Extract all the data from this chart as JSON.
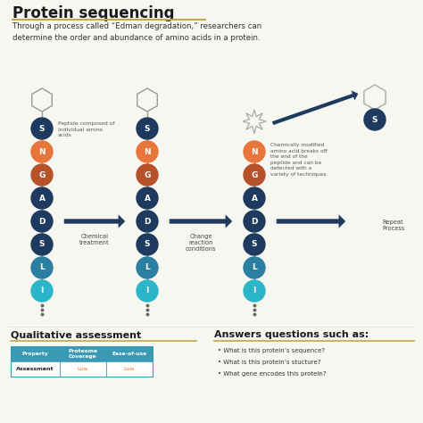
{
  "title": "Protein sequencing",
  "subtitle": "Through a process called “Edman degradation,” researchers can\ndetermine the order and abundance of amino acids in a protein.",
  "chain1_labels": [
    "S",
    "N",
    "G",
    "A",
    "D",
    "S",
    "L",
    "I"
  ],
  "chain1_colors": [
    "#1e3a5f",
    "#e8753a",
    "#b5522a",
    "#1e3a5f",
    "#1e3a5f",
    "#1e3a5f",
    "#2b7fa0",
    "#2bb5c8"
  ],
  "chain2_labels": [
    "S",
    "N",
    "G",
    "A",
    "D",
    "S",
    "L",
    "I"
  ],
  "chain2_colors": [
    "#1e3a5f",
    "#e8753a",
    "#b5522a",
    "#1e3a5f",
    "#1e3a5f",
    "#1e3a5f",
    "#2b7fa0",
    "#2bb5c8"
  ],
  "chain3_labels": [
    "N",
    "G",
    "A",
    "D",
    "S",
    "L",
    "I"
  ],
  "chain3_colors": [
    "#e8753a",
    "#b5522a",
    "#1e3a5f",
    "#1e3a5f",
    "#1e3a5f",
    "#2b7fa0",
    "#2bb5c8"
  ],
  "arrow_color": "#1e3a5f",
  "label1": "Chemical\ntreatment",
  "label2": "Change\nreaction\nconditions",
  "label3": "Repeat\nProcess",
  "annot1": "Peptide composed of\nindividual amino\nacids",
  "annot3": "Chemically modified\namino acid breaks off\nthe end of the\npeptide and can be\ndetected with a\nvariety of techniques",
  "qual_title": "Qualitative assessment",
  "ans_title": "Answers questions such as:",
  "table_headers": [
    "Property",
    "Proteome\nCoverage",
    "Ease-of-use"
  ],
  "table_row": [
    "Assessment",
    "Low",
    "Low"
  ],
  "bullet_points": [
    "What is this protein’s sequence?",
    "What is this protein’s stucture?",
    "What gene encodes this protein?"
  ],
  "bg_color": "#f7f7f2",
  "title_color": "#1a1a1a",
  "dark_blue": "#1e3a5f",
  "teal": "#2bb5c8",
  "orange": "#e8753a",
  "brown": "#b5522a",
  "separator_color": "#c8a44a",
  "table_border_color": "#3a9ab5",
  "table_header_bg": "#3a9ab5",
  "line_color": "#999999"
}
